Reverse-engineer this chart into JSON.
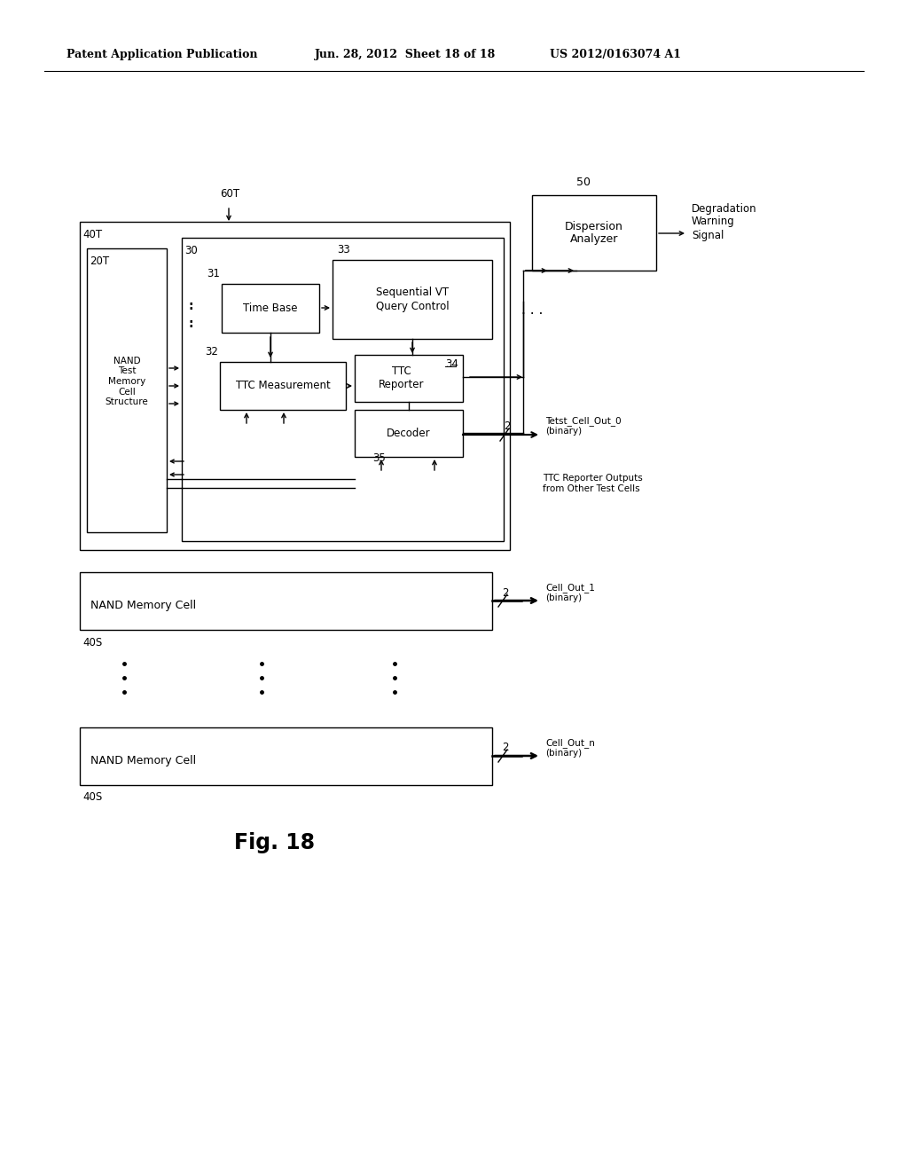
{
  "bg_color": "#ffffff",
  "header_left": "Patent Application Publication",
  "header_mid": "Jun. 28, 2012  Sheet 18 of 18",
  "header_right": "US 2012/0163074 A1",
  "fig_label": "Fig. 18",
  "title_fontsize": 10,
  "body_fontsize": 9,
  "small_fontsize": 8.5
}
